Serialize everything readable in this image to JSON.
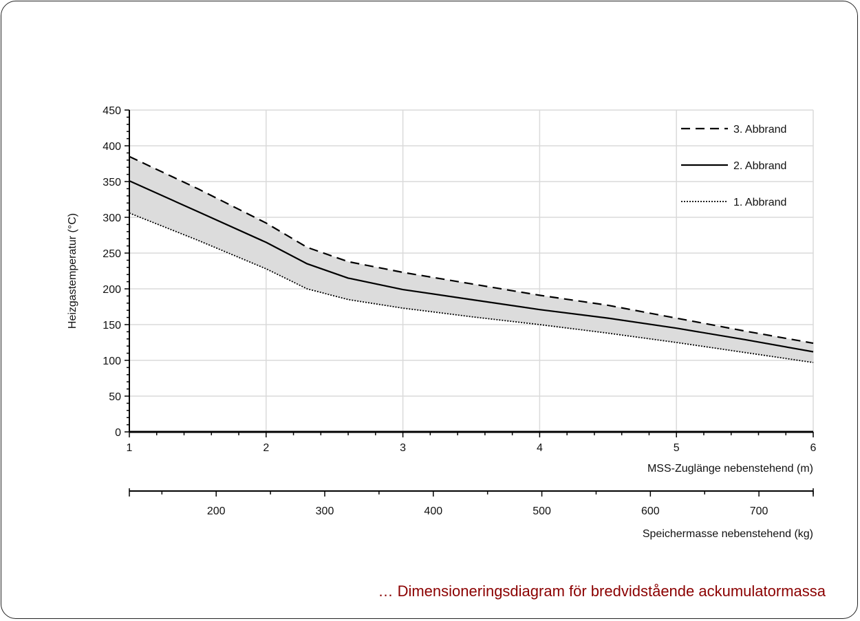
{
  "caption": "… Dimensioneringsdiagram för bredvidstående ackumulatormassa",
  "chart_data": {
    "type": "line",
    "ylabel": "Heizgastemperatur (°C)",
    "xlabel": "MSS-Zuglänge nebenstehend (m)",
    "x2label": "Speichermasse nebenstehend (kg)",
    "xlim": [
      1,
      6
    ],
    "ylim": [
      0,
      450
    ],
    "x2lim": [
      120,
      750
    ],
    "x_ticks": [
      1,
      2,
      3,
      4,
      5,
      6
    ],
    "y_ticks": [
      0,
      50,
      100,
      150,
      200,
      250,
      300,
      350,
      400,
      450
    ],
    "x2_ticks": [
      200,
      300,
      400,
      500,
      600,
      700
    ],
    "grid": true,
    "legend_position": "top-right",
    "shaded_band_between": [
      "1. Abbrand",
      "3. Abbrand"
    ],
    "series": [
      {
        "name": "3. Abbrand",
        "style": "dashed",
        "x": [
          1,
          1.5,
          2,
          2.3,
          2.6,
          3,
          3.5,
          4,
          4.5,
          5,
          5.5,
          6
        ],
        "y": [
          385,
          340,
          292,
          258,
          238,
          223,
          207,
          191,
          177,
          159,
          141,
          124
        ]
      },
      {
        "name": "2. Abbrand",
        "style": "solid",
        "x": [
          1,
          1.5,
          2,
          2.3,
          2.6,
          3,
          3.5,
          4,
          4.5,
          5,
          5.5,
          6
        ],
        "y": [
          351,
          308,
          265,
          235,
          215,
          199,
          185,
          171,
          159,
          145,
          129,
          112
        ]
      },
      {
        "name": "1. Abbrand",
        "style": "dotted",
        "x": [
          1,
          1.5,
          2,
          2.3,
          2.6,
          3,
          3.5,
          4,
          4.5,
          5,
          5.5,
          6
        ],
        "y": [
          306,
          268,
          228,
          200,
          185,
          173,
          161,
          150,
          138,
          125,
          111,
          97
        ]
      }
    ]
  }
}
